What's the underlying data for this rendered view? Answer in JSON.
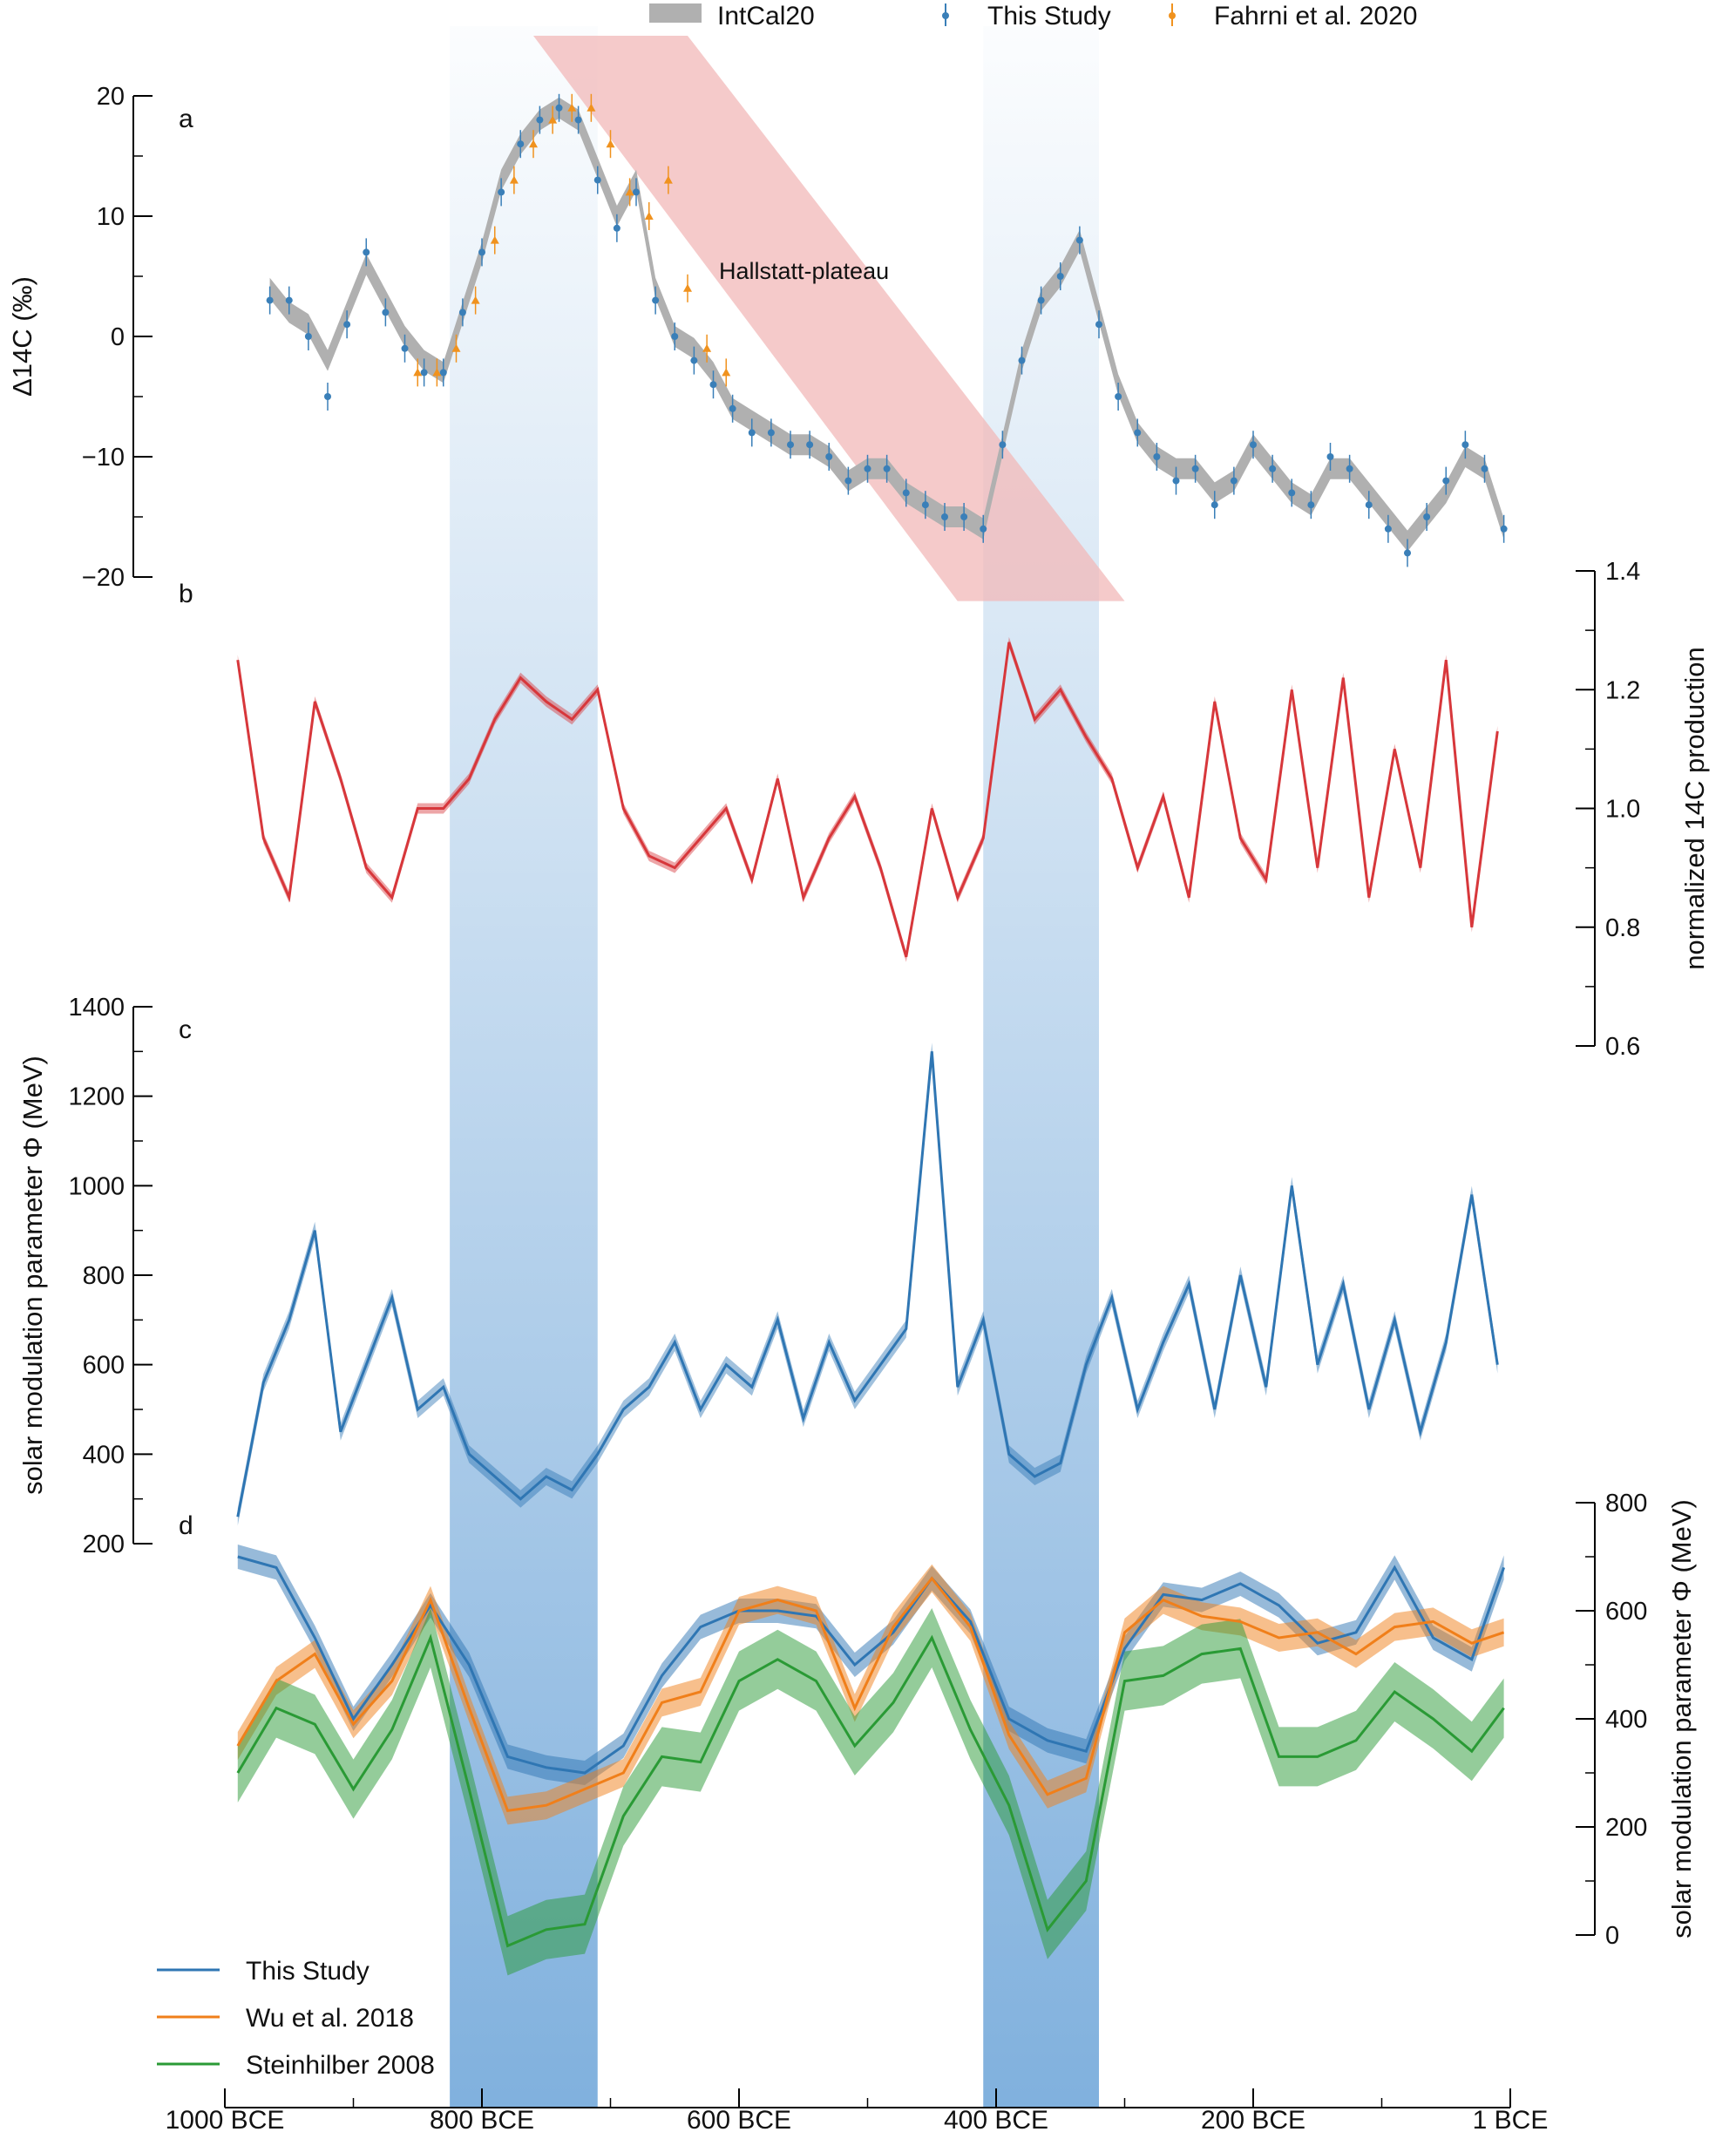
{
  "legend_top": [
    {
      "label": "IntCal20",
      "color": "#b0b0b0",
      "kind": "band"
    },
    {
      "label": "This Study",
      "color": "#3a7fb8",
      "kind": "errorbar"
    },
    {
      "label": "Fahrni et al. 2020",
      "color": "#f0921e",
      "kind": "errorbar"
    }
  ],
  "legend_bottom": [
    {
      "label": "This Study",
      "color": "#2f76b3"
    },
    {
      "label": "Wu et al. 2018",
      "color": "#f07f1a"
    },
    {
      "label": "Steinhilber 2008",
      "color": "#2a9a35"
    }
  ],
  "annotation": "Hallstatt-plateau",
  "colors": {
    "intcal": "#b0b0b0",
    "this_study_points": "#3a7fb8",
    "fahrni_points": "#f0921e",
    "production": "#d7373b",
    "phi": "#2f76b3",
    "wu": "#f07f1a",
    "steinhilber": "#2a9a35",
    "plateau": "#f2b8b8",
    "minimum_band": "#4a8fcf"
  },
  "chart_data": [
    {
      "panel": "a",
      "type": "scatter",
      "ylabel": "Δ14C (‰)",
      "ylim": [
        -20,
        20
      ],
      "yticks": [
        -20,
        -10,
        0,
        10,
        20
      ],
      "ytick_labels": [
        "−20",
        "−10",
        "0",
        "10",
        "20"
      ],
      "x": [
        -965,
        -950,
        -935,
        -920,
        -905,
        -890,
        -875,
        -860,
        -845,
        -830,
        -815,
        -800,
        -785,
        -770,
        -755,
        -740,
        -725,
        -710,
        -695,
        -680,
        -665,
        -650,
        -635,
        -620,
        -605,
        -590,
        -575,
        -560,
        -545,
        -530,
        -515,
        -500,
        -485,
        -470,
        -455,
        -440,
        -425,
        -410,
        -395,
        -380,
        -365,
        -350,
        -335,
        -320,
        -305,
        -290,
        -275,
        -260,
        -245,
        -230,
        -215,
        -200,
        -185,
        -170,
        -155,
        -140,
        -125,
        -110,
        -95,
        -80,
        -65,
        -50,
        -35,
        -20,
        -5
      ],
      "series": [
        {
          "name": "IntCal20",
          "values": [
            4,
            2,
            1,
            -2,
            2,
            6,
            3,
            0,
            -2,
            -3,
            2,
            7,
            13,
            16,
            18,
            19,
            18,
            14,
            10,
            13,
            4,
            0,
            -1,
            -3,
            -6,
            -7,
            -8,
            -9,
            -9,
            -10,
            -12,
            -11,
            -11,
            -13,
            -14,
            -15,
            -15,
            -16,
            -9,
            -2,
            3,
            5,
            8,
            2,
            -4,
            -8,
            -10,
            -11,
            -11,
            -13,
            -12,
            -9,
            -11,
            -13,
            -14,
            -11,
            -11,
            -13,
            -15,
            -17,
            -15,
            -13,
            -10,
            -11,
            -16
          ]
        },
        {
          "name": "This Study",
          "values": [
            3,
            3,
            0,
            -5,
            1,
            7,
            2,
            -1,
            -3,
            -3,
            2,
            7,
            12,
            16,
            18,
            19,
            18,
            13,
            9,
            12,
            3,
            0,
            -2,
            -4,
            -6,
            -8,
            -8,
            -9,
            -9,
            -10,
            -12,
            -11,
            -11,
            -13,
            -14,
            -15,
            -15,
            -16,
            -9,
            -2,
            3,
            5,
            8,
            1,
            -5,
            -8,
            -10,
            -12,
            -11,
            -14,
            -12,
            -9,
            -11,
            -13,
            -14,
            -10,
            -11,
            -14,
            -16,
            -18,
            -15,
            -12,
            -9,
            -11,
            -16
          ]
        },
        {
          "name": "Fahrni et al. 2020",
          "x": [
            -850,
            -835,
            -820,
            -805,
            -790,
            -775,
            -760,
            -745,
            -730,
            -715,
            -700,
            -685,
            -670,
            -655,
            -640,
            -625,
            -610
          ],
          "values": [
            -3,
            -3,
            -1,
            3,
            8,
            13,
            16,
            18,
            19,
            19,
            16,
            12,
            10,
            13,
            4,
            -1,
            -3
          ]
        }
      ]
    },
    {
      "panel": "b",
      "type": "line",
      "ylabel": "normalized 14C production",
      "ylim": [
        0.6,
        1.4
      ],
      "yticks": [
        0.6,
        0.8,
        1.0,
        1.2,
        1.4
      ],
      "ytick_labels": [
        "0.6",
        "0.8",
        "1.0",
        "1.2",
        "1.4"
      ],
      "x": [
        -990,
        -970,
        -950,
        -930,
        -910,
        -890,
        -870,
        -850,
        -830,
        -810,
        -790,
        -770,
        -750,
        -730,
        -710,
        -690,
        -670,
        -650,
        -630,
        -610,
        -590,
        -570,
        -550,
        -530,
        -510,
        -490,
        -470,
        -450,
        -430,
        -410,
        -390,
        -370,
        -350,
        -330,
        -310,
        -290,
        -270,
        -250,
        -230,
        -210,
        -190,
        -170,
        -150,
        -130,
        -110,
        -90,
        -70,
        -50,
        -30,
        -10
      ],
      "series": [
        {
          "name": "This Study",
          "values": [
            1.25,
            0.95,
            0.85,
            1.18,
            1.05,
            0.9,
            0.85,
            1.0,
            1.0,
            1.05,
            1.15,
            1.22,
            1.18,
            1.15,
            1.2,
            1.0,
            0.92,
            0.9,
            0.95,
            1.0,
            0.88,
            1.05,
            0.85,
            0.95,
            1.02,
            0.9,
            0.75,
            1.0,
            0.85,
            0.95,
            1.28,
            1.15,
            1.2,
            1.12,
            1.05,
            0.9,
            1.02,
            0.85,
            1.18,
            0.95,
            0.88,
            1.2,
            0.9,
            1.22,
            0.85,
            1.1,
            0.9,
            1.25,
            0.8,
            1.13
          ]
        }
      ]
    },
    {
      "panel": "c",
      "type": "line",
      "ylabel": "solar modulation parameter Φ (MeV)",
      "ylim": [
        200,
        1400
      ],
      "yticks": [
        200,
        400,
        600,
        800,
        1000,
        1200,
        1400
      ],
      "ytick_labels": [
        "200",
        "400",
        "600",
        "800",
        "1000",
        "1200",
        "1400"
      ],
      "x": [
        -990,
        -970,
        -950,
        -930,
        -910,
        -890,
        -870,
        -850,
        -830,
        -810,
        -790,
        -770,
        -750,
        -730,
        -710,
        -690,
        -670,
        -650,
        -630,
        -610,
        -590,
        -570,
        -550,
        -530,
        -510,
        -490,
        -470,
        -450,
        -430,
        -410,
        -390,
        -370,
        -350,
        -330,
        -310,
        -290,
        -270,
        -250,
        -230,
        -210,
        -190,
        -170,
        -150,
        -130,
        -110,
        -90,
        -70,
        -50,
        -30,
        -10
      ],
      "series": [
        {
          "name": "This Study",
          "values": [
            260,
            560,
            700,
            900,
            450,
            600,
            750,
            500,
            550,
            400,
            350,
            300,
            350,
            320,
            400,
            500,
            550,
            650,
            500,
            600,
            550,
            700,
            480,
            650,
            520,
            600,
            680,
            1300,
            550,
            700,
            400,
            350,
            380,
            600,
            750,
            500,
            650,
            780,
            500,
            800,
            550,
            1000,
            600,
            780,
            500,
            700,
            450,
            650,
            980,
            600
          ]
        }
      ]
    },
    {
      "panel": "d",
      "type": "line",
      "ylabel": "solar modulation parameter Φ (MeV)",
      "ylim": [
        0,
        800
      ],
      "yticks": [
        0,
        200,
        400,
        600,
        800
      ],
      "ytick_labels": [
        "0",
        "200",
        "400",
        "600",
        "800"
      ],
      "x": [
        -990,
        -960,
        -930,
        -900,
        -870,
        -840,
        -810,
        -780,
        -750,
        -720,
        -690,
        -660,
        -630,
        -600,
        -570,
        -540,
        -510,
        -480,
        -450,
        -420,
        -390,
        -360,
        -330,
        -300,
        -270,
        -240,
        -210,
        -180,
        -150,
        -120,
        -90,
        -60,
        -30,
        -5
      ],
      "series": [
        {
          "name": "This Study",
          "values": [
            700,
            680,
            550,
            400,
            500,
            610,
            500,
            330,
            310,
            300,
            350,
            480,
            570,
            600,
            600,
            590,
            500,
            560,
            660,
            580,
            400,
            360,
            340,
            530,
            630,
            620,
            650,
            610,
            540,
            560,
            680,
            550,
            510,
            680
          ]
        },
        {
          "name": "Wu et al. 2018",
          "values": [
            350,
            470,
            520,
            390,
            470,
            620,
            420,
            230,
            240,
            270,
            300,
            430,
            450,
            600,
            620,
            600,
            420,
            570,
            660,
            570,
            370,
            260,
            290,
            560,
            620,
            590,
            580,
            550,
            560,
            520,
            570,
            580,
            540,
            560
          ]
        },
        {
          "name": "Steinhilber 2008",
          "values": [
            300,
            420,
            390,
            270,
            380,
            550,
            270,
            -20,
            10,
            20,
            220,
            330,
            320,
            470,
            510,
            470,
            350,
            430,
            550,
            380,
            240,
            10,
            100,
            470,
            480,
            520,
            530,
            330,
            330,
            360,
            450,
            400,
            340,
            420
          ]
        }
      ]
    }
  ],
  "x_axis": {
    "xlim": [
      -1000,
      0
    ],
    "ticks": [
      -1000,
      -800,
      -600,
      -400,
      -200,
      0
    ],
    "tick_labels": [
      "1000 BCE",
      "800 BCE",
      "600 BCE",
      "400 BCE",
      "200 BCE",
      "1 BCE"
    ]
  },
  "shaded_regions": [
    [
      -825,
      -710
    ],
    [
      -410,
      -320
    ]
  ],
  "panel_labels": [
    "a",
    "b",
    "c",
    "d"
  ]
}
